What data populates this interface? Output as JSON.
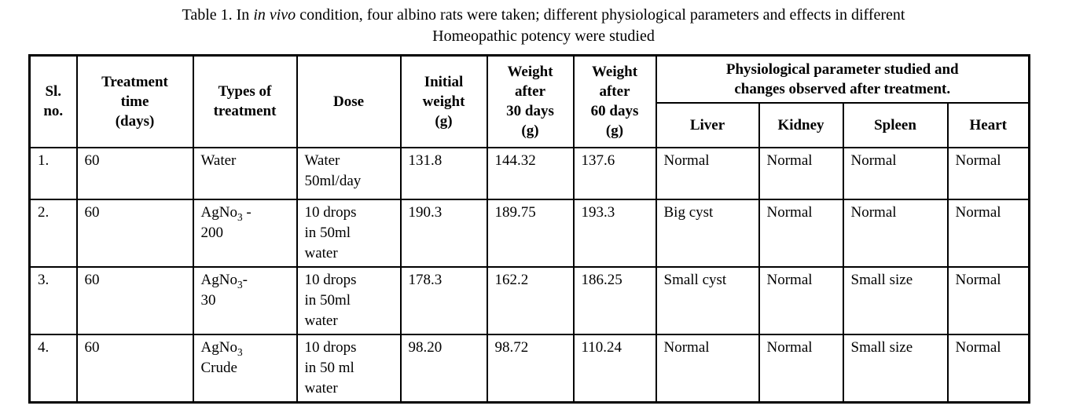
{
  "caption": "Table 1. In *in vivo* condition, four albino rats were taken; different physiological parameters and effects in different\nHomeopathic potency were studied",
  "table": {
    "columns": {
      "sl_no": "Sl.\nno.",
      "treatment_time": "Treatment\ntime\n(days)",
      "types_of_treatment": "Types of\ntreatment",
      "dose": "Dose",
      "initial_weight": "Initial\nweight\n(g)",
      "weight_30": "Weight\nafter\n30 days\n(g)",
      "weight_60": "Weight\nafter\n60 days\n(g)",
      "physio_group": "Physiological parameter studied and\nchanges observed after treatment.",
      "liver": "Liver",
      "kidney": "Kidney",
      "spleen": "Spleen",
      "heart": "Heart"
    },
    "rows": [
      [
        "1.",
        "60",
        "Water",
        "Water\n50ml/day",
        "131.8",
        "144.32",
        "137.6",
        "Normal",
        "Normal",
        "Normal",
        "Normal"
      ],
      [
        "2.",
        "60",
        "AgNo~3~ -\n200",
        "10 drops\nin 50ml\nwater",
        "190.3",
        "189.75",
        "193.3",
        "Big cyst",
        "Normal",
        "Normal",
        "Normal"
      ],
      [
        "3.",
        "60",
        "AgNo~3~-\n30",
        "10 drops\nin 50ml\nwater",
        "178.3",
        "162.2",
        "186.25",
        "Small cyst",
        "Normal",
        "Small size",
        "Normal"
      ],
      [
        "4.",
        "60",
        "AgNo~3~\nCrude",
        "10 drops\nin 50 ml\nwater",
        "98.20",
        "98.72",
        "110.24",
        "Normal",
        "Normal",
        "Small size",
        "Normal"
      ]
    ]
  }
}
